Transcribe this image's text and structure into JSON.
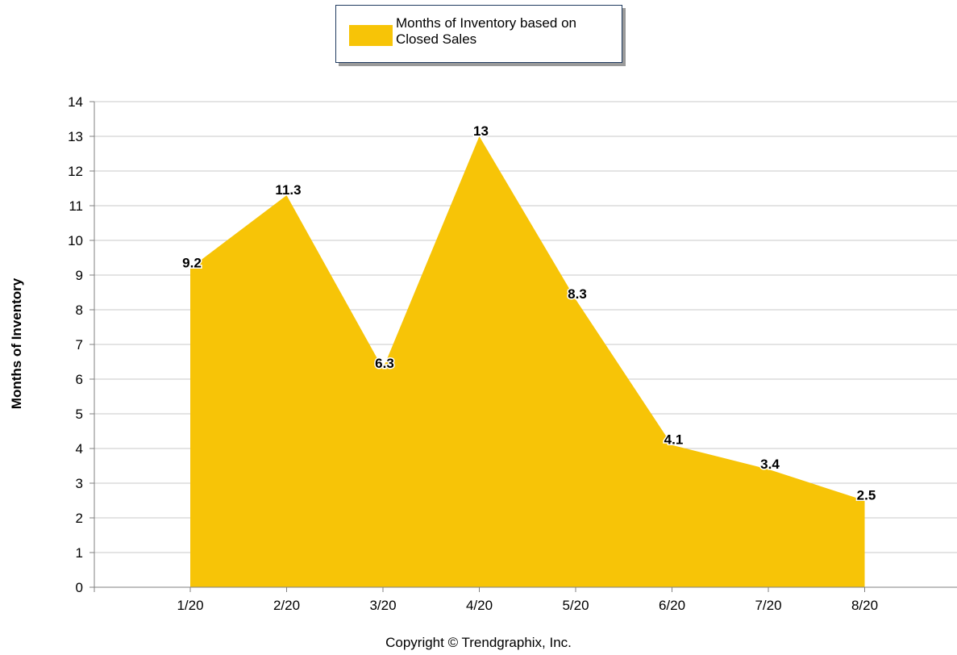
{
  "legend": {
    "label": "Months of Inventory based on Closed Sales"
  },
  "copyright": "Copyright © Trendgraphix, Inc.",
  "colors": {
    "area": "#F7C407",
    "grid": "#c8c8c8",
    "axis": "#808080",
    "legend_border": "#1f3a5f"
  },
  "chart_data": {
    "type": "area",
    "categories": [
      "1/20",
      "2/20",
      "3/20",
      "4/20",
      "5/20",
      "6/20",
      "7/20",
      "8/20"
    ],
    "series": [
      {
        "name": "Months of Inventory based on Closed Sales",
        "values": [
          9.2,
          11.3,
          6.3,
          13,
          8.3,
          4.1,
          3.4,
          2.5
        ]
      }
    ],
    "data_labels": [
      "9.2",
      "11.3",
      "6.3",
      "13",
      "8.3",
      "4.1",
      "3.4",
      "2.5"
    ],
    "ylabel": "Months of Inventory",
    "xlabel": "",
    "ylim": [
      0,
      14
    ],
    "yticks": [
      "0",
      "1",
      "2",
      "3",
      "4",
      "5",
      "6",
      "7",
      "8",
      "9",
      "10",
      "11",
      "12",
      "13",
      "14"
    ],
    "grid": true,
    "legend_position": "top-center"
  }
}
